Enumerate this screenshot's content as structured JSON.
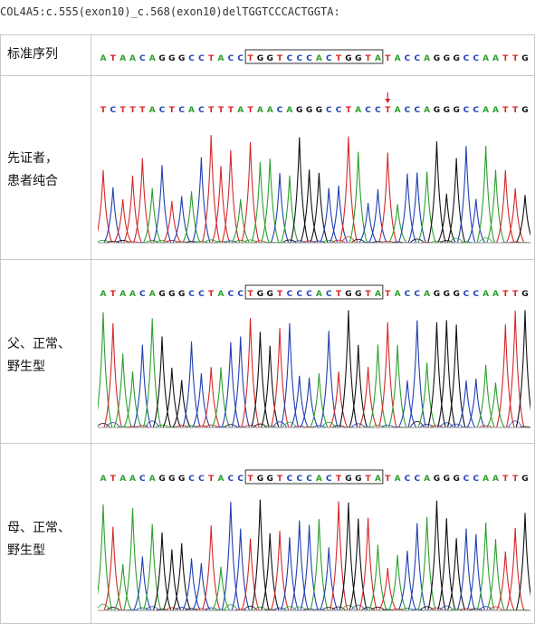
{
  "caption": "COL4A5:c.555(exon10)_c.568(exon10)delTGGTCCCACTGGTA:",
  "rows": [
    {
      "label": "标准序列"
    },
    {
      "label_line1": "先证者，",
      "label_line2": "患者纯合"
    },
    {
      "label_line1": "父、正常、",
      "label_line2": "野生型"
    },
    {
      "label_line1": "母、正常、",
      "label_line2": "野生型"
    }
  ],
  "reference_sequence": "ATAACAGGGCCTACCTGGTCCCACTGGTATACCAGGGCCAATTG",
  "proband_sequence": "TCTTTACTCACTTTATAACAGGGCCTACCTACCAGGGCCAATTG",
  "father_sequence": "ATAACAGGGCCTACCTGGTCCCACTGGTATACCAGGGCCAATTG",
  "mother_sequence": "ATAACAGGGCCTACCTGGTCCCACTGGTATACCAGGGCCAATTG",
  "deleted_segment": "TGGTCCCACTGGTA",
  "base_colors": {
    "A": "#2ca02c",
    "C": "#1f3fb4",
    "G": "#111111",
    "T": "#d62728"
  }
}
